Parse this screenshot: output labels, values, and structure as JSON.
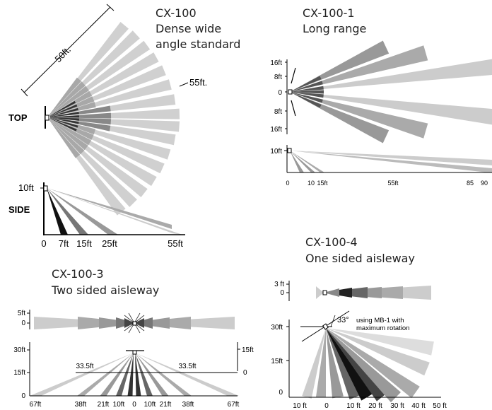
{
  "cx100": {
    "model": "CX-100",
    "desc1": "Dense wide",
    "desc2": "angle standard",
    "dim_50": "50ft.",
    "dim_55": "55ft.",
    "top_label": "TOP",
    "side_label": "SIDE",
    "side_y": "10ft",
    "side_ticks": [
      "0",
      "7ft",
      "15ft",
      "25ft",
      "55ft"
    ]
  },
  "cx100_1": {
    "model": "CX-100-1",
    "desc": "Long range",
    "y_ticks": [
      "16ft",
      "8ft",
      "0",
      "8ft",
      "16ft"
    ],
    "side_y": "10ft",
    "x_ticks": [
      "0",
      "10",
      "15ft",
      "55ft",
      "85",
      "90"
    ]
  },
  "cx100_3": {
    "model": "CX-100-3",
    "desc": "Two sided aisleway",
    "top_y": [
      "5ft",
      "0"
    ],
    "side_y_left": [
      "30ft",
      "15ft",
      "0"
    ],
    "side_y_right": [
      "15ft",
      "0"
    ],
    "mid_label_left": "33.5ft",
    "mid_label_right": "33.5ft",
    "x_ticks": [
      "67ft",
      "38ft",
      "21ft",
      "10ft",
      "0",
      "10ft",
      "21ft",
      "38ft",
      "67ft"
    ]
  },
  "cx100_4": {
    "model": "CX-100-4",
    "desc": "One sided aisleway",
    "top_y": [
      "3 ft",
      "0"
    ],
    "side_y": [
      "30ft",
      "15ft",
      "0"
    ],
    "angle": "33°",
    "note1": "using MB-1 with",
    "note2": "maximum rotation",
    "x_ticks": [
      "10 ft",
      "0",
      "10 ft",
      "20 ft",
      "30 ft",
      "40 ft",
      "50 ft"
    ]
  }
}
